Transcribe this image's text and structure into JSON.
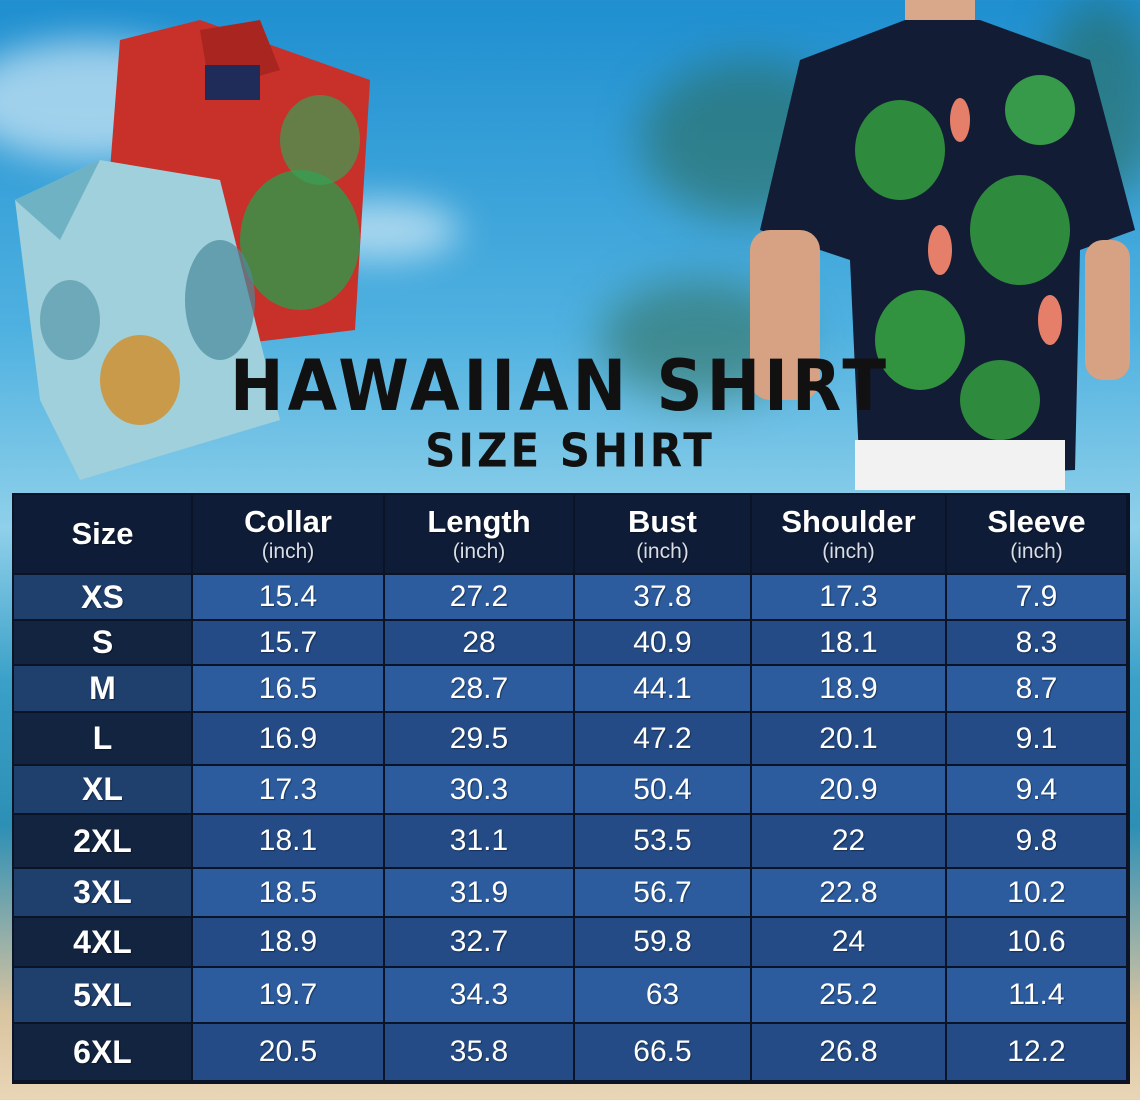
{
  "title": "HAWAIIAN SHIRT",
  "subtitle": "SIZE SHIRT",
  "colors": {
    "header_bg": "#0f1c37",
    "row_light": "#2c5c9e",
    "row_dark": "#244b85",
    "size_light": "#1f3f6d",
    "size_dark": "#132440"
  },
  "table": {
    "headers": [
      {
        "label": "Size",
        "unit": ""
      },
      {
        "label": "Collar",
        "unit": "(inch)"
      },
      {
        "label": "Length",
        "unit": "(inch)"
      },
      {
        "label": "Bust",
        "unit": "(inch)"
      },
      {
        "label": "Shoulder",
        "unit": "(inch)"
      },
      {
        "label": "Sleeve",
        "unit": "(inch)"
      }
    ],
    "rows": [
      [
        "XS",
        "15.4",
        "27.2",
        "37.8",
        "17.3",
        "7.9"
      ],
      [
        "S",
        "15.7",
        "28",
        "40.9",
        "18.1",
        "8.3"
      ],
      [
        "M",
        "16.5",
        "28.7",
        "44.1",
        "18.9",
        "8.7"
      ],
      [
        "L",
        "16.9",
        "29.5",
        "47.2",
        "20.1",
        "9.1"
      ],
      [
        "XL",
        "17.3",
        "30.3",
        "50.4",
        "20.9",
        "9.4"
      ],
      [
        "2XL",
        "18.1",
        "31.1",
        "53.5",
        "22",
        "9.8"
      ],
      [
        "3XL",
        "18.5",
        "31.9",
        "56.7",
        "22.8",
        "10.2"
      ],
      [
        "4XL",
        "18.9",
        "32.7",
        "59.8",
        "24",
        "10.6"
      ],
      [
        "5XL",
        "19.7",
        "34.3",
        "63",
        "25.2",
        "11.4"
      ],
      [
        "6XL",
        "20.5",
        "35.8",
        "66.5",
        "26.8",
        "12.2"
      ]
    ]
  }
}
